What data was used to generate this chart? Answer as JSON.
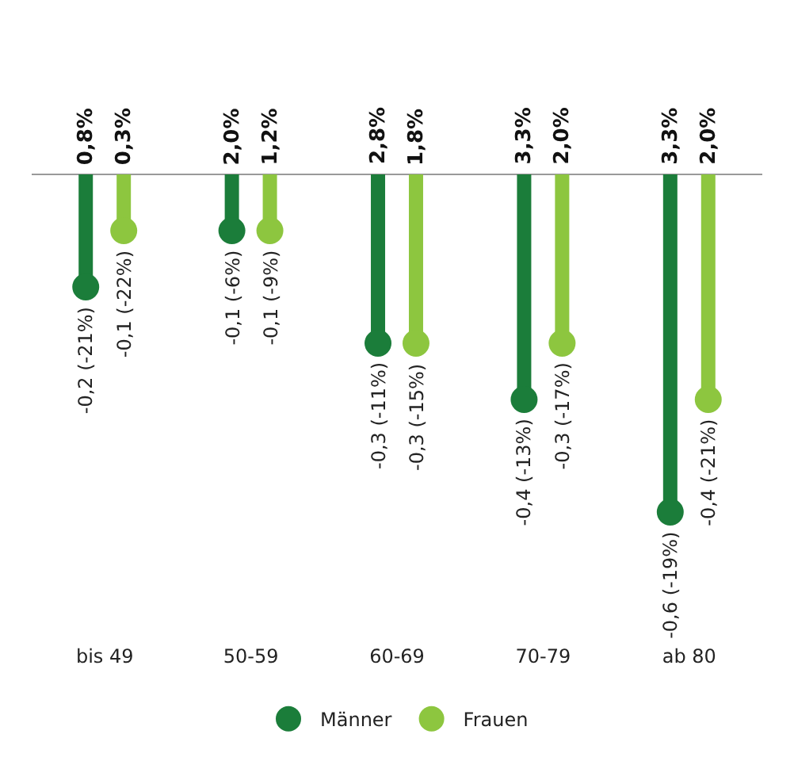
{
  "chart_data": {
    "type": "lollipop",
    "categories": [
      "bis 49",
      "50-59",
      "60-69",
      "70-79",
      "ab 80"
    ],
    "series": [
      {
        "name": "Männer",
        "color": "#1b7d3a",
        "values": [
          -0.2,
          -0.1,
          -0.3,
          -0.4,
          -0.6
        ],
        "value_labels": [
          "-0,2 (-21%)",
          "-0,1 (-6%)",
          "-0,3 (-11%)",
          "-0,4 (-13%)",
          "-0,6 (-19%)"
        ]
      },
      {
        "name": "Frauen",
        "color": "#8dc63f",
        "values": [
          -0.1,
          -0.1,
          -0.3,
          -0.3,
          -0.4
        ],
        "value_labels": [
          "-0,1 (-22%)",
          "-0,1 (-9%)",
          "-0,3 (-15%)",
          "-0,3 (-17%)",
          "-0,4 (-21%)"
        ]
      }
    ],
    "annotations": [
      "0,8%",
      "0,3%",
      "2,0%",
      "1,2%",
      "2,8%",
      "1,8%",
      "3,3%",
      "2,0%",
      "3,3%",
      "2,0%"
    ],
    "legend": "bottom",
    "grid": false,
    "marker": "circle"
  }
}
